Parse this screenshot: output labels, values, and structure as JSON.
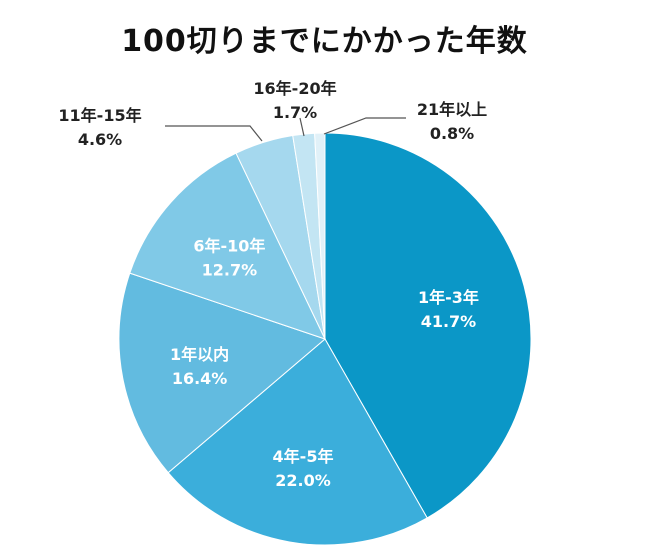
{
  "chart_data": {
    "type": "pie",
    "title": "100切りまでにかかった年数",
    "categories": [
      "1年-3年",
      "4年-5年",
      "1年以内",
      "6年-10年",
      "11年-15年",
      "16年-20年",
      "21年以上"
    ],
    "values": [
      41.7,
      22.0,
      16.4,
      12.7,
      4.6,
      1.7,
      0.8
    ],
    "labels": [
      "41.7%",
      "22.0%",
      "16.4%",
      "12.7%",
      "4.6%",
      "1.7%",
      "0.8%"
    ],
    "colors": [
      "#0b97c7",
      "#3baedb",
      "#62bbe0",
      "#80c9e7",
      "#a5d8ee",
      "#c3e5f3",
      "#e1f1f8"
    ],
    "label_placement": [
      "inside",
      "inside",
      "inside",
      "inside",
      "outside",
      "outside",
      "outside"
    ]
  }
}
